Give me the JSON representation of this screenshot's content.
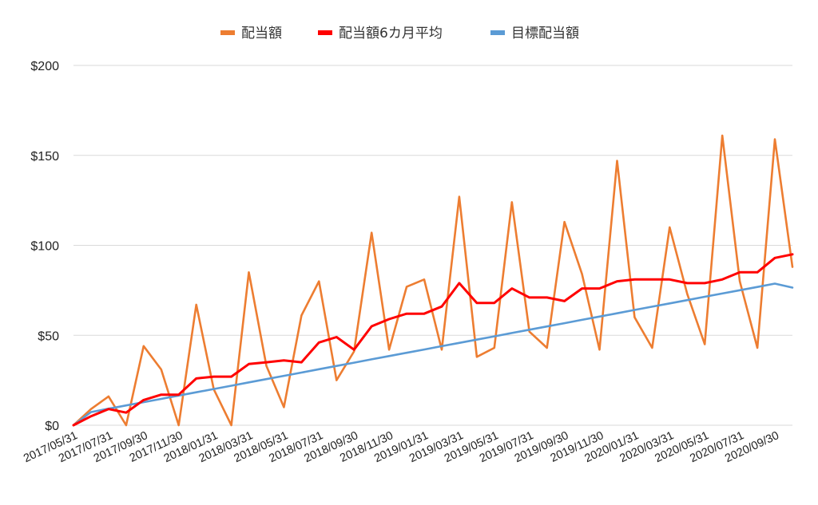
{
  "chart_data": {
    "type": "line",
    "title": "",
    "xlabel": "",
    "ylabel": "",
    "ylim": [
      0,
      200
    ],
    "yticks": [
      "$0",
      "$50",
      "$100",
      "$150",
      "$200"
    ],
    "ytick_values": [
      0,
      50,
      100,
      150,
      200
    ],
    "grid": true,
    "legend_position": "top",
    "x": [
      "2017/05/31",
      "2017/06/30",
      "2017/07/31",
      "2017/08/31",
      "2017/09/30",
      "2017/10/31",
      "2017/11/30",
      "2017/12/31",
      "2018/01/31",
      "2018/02/28",
      "2018/03/31",
      "2018/04/30",
      "2018/05/31",
      "2018/06/30",
      "2018/07/31",
      "2018/08/31",
      "2018/09/30",
      "2018/10/31",
      "2018/11/30",
      "2018/12/31",
      "2019/01/31",
      "2019/02/28",
      "2019/03/31",
      "2019/04/30",
      "2019/05/31",
      "2019/06/30",
      "2019/07/31",
      "2019/08/31",
      "2019/09/30",
      "2019/10/31",
      "2019/11/30",
      "2019/12/31",
      "2020/01/31",
      "2020/02/29",
      "2020/03/31",
      "2020/04/30",
      "2020/05/31",
      "2020/06/30",
      "2020/07/31",
      "2020/08/31",
      "2020/09/30",
      "2020/10/31"
    ],
    "x_tick_labels": [
      "2017/05/31",
      "2017/07/31",
      "2017/09/30",
      "2017/11/30",
      "2018/01/31",
      "2018/03/31",
      "2018/05/31",
      "2018/07/31",
      "2018/09/30",
      "2018/11/30",
      "2019/01/31",
      "2019/03/31",
      "2019/05/31",
      "2019/07/31",
      "2019/09/30",
      "2019/11/30",
      "2020/01/31",
      "2020/03/31",
      "2020/05/31",
      "2020/07/31",
      "2020/09/30"
    ],
    "series": [
      {
        "name": "配当額",
        "color": "#ED7D31",
        "values": [
          0,
          9,
          16,
          0,
          44,
          31,
          0,
          67,
          20,
          0,
          85,
          33,
          10,
          61,
          80,
          25,
          41,
          107,
          42,
          77,
          81,
          42,
          127,
          38,
          43,
          124,
          52,
          43,
          113,
          84,
          42,
          147,
          60,
          43,
          110,
          73,
          45,
          161,
          80,
          43,
          159,
          88
        ]
      },
      {
        "name": "配当額6カ月平均",
        "color": "#FF0000",
        "values": [
          0,
          5,
          9,
          7,
          14,
          17,
          17,
          26,
          27,
          27,
          34,
          35,
          36,
          35,
          46,
          49,
          42,
          55,
          59,
          62,
          62,
          66,
          79,
          68,
          68,
          76,
          71,
          71,
          69,
          76,
          76,
          80,
          81,
          81,
          81,
          79,
          79,
          81,
          85,
          85,
          93,
          95
        ]
      },
      {
        "name": "目標配当額",
        "color": "#5B9BD5",
        "values": [
          0,
          7.33,
          9.16,
          10.99,
          12.82,
          14.65,
          16.48,
          18.31,
          20.14,
          21.97,
          23.8,
          25.63,
          27.46,
          29.29,
          31.12,
          32.95,
          34.78,
          36.61,
          38.44,
          40.27,
          42.1,
          43.93,
          45.76,
          47.59,
          49.42,
          51.25,
          53.08,
          54.91,
          56.74,
          58.57,
          60.4,
          62.23,
          64.06,
          65.89,
          67.72,
          69.55,
          71.38,
          73.21,
          75.04,
          76.87,
          78.7,
          76.5
        ]
      }
    ]
  }
}
